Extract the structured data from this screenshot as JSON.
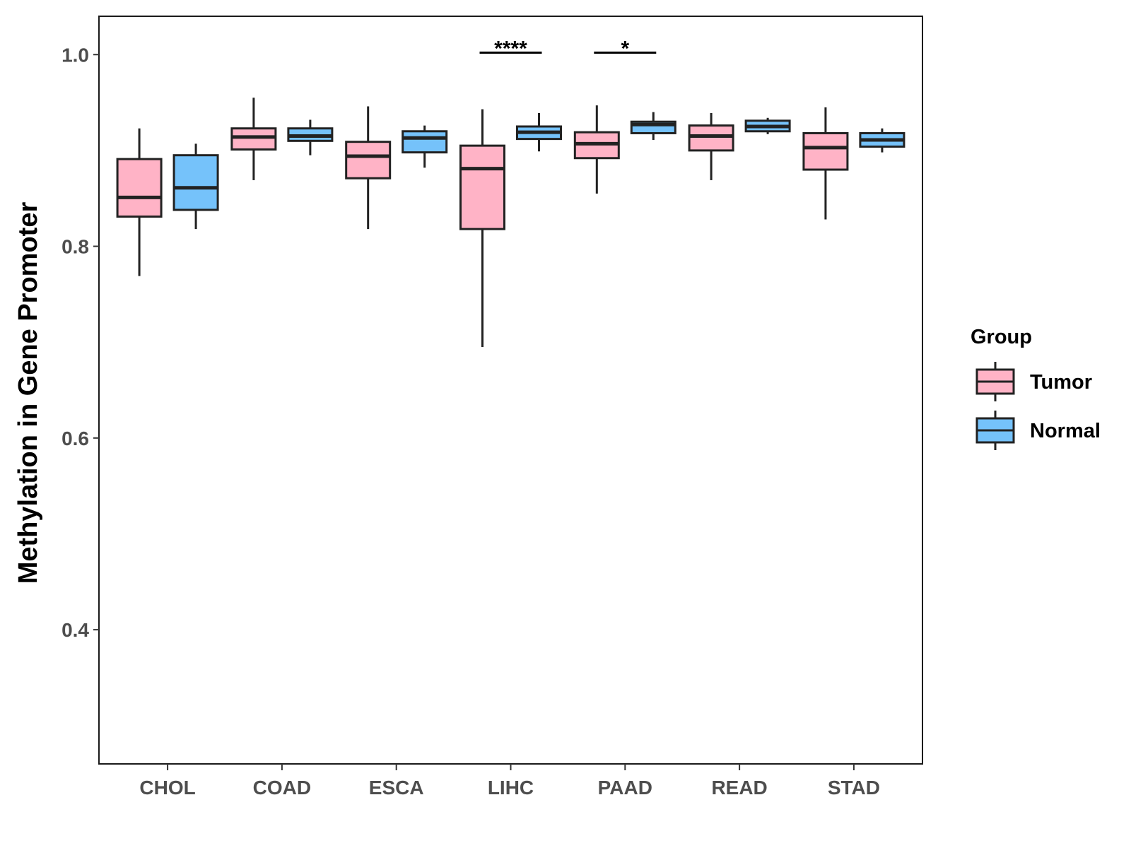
{
  "chart_data": {
    "type": "boxplot",
    "title": "",
    "xlabel": "",
    "ylabel": "Methylation in Gene Promoter",
    "ylim": [
      0.26,
      1.04
    ],
    "yticks": [
      0.4,
      0.6,
      0.8,
      1.0
    ],
    "ytick_labels": [
      "0.4",
      "0.6",
      "0.8",
      "1.0"
    ],
    "categories": [
      "CHOL",
      "COAD",
      "ESCA",
      "LIHC",
      "PAAD",
      "READ",
      "STAD"
    ],
    "grid": false,
    "legend": {
      "title": "Group",
      "position": "right",
      "entries": [
        {
          "name": "Tumor",
          "color": "#ffb3c6"
        },
        {
          "name": "Normal",
          "color": "#75c2fa"
        }
      ]
    },
    "series": [
      {
        "name": "Tumor",
        "color": "#ffb3c6",
        "boxes": [
          {
            "min": 0.769,
            "q1": 0.831,
            "median": 0.851,
            "q3": 0.891,
            "max": 0.923
          },
          {
            "min": 0.869,
            "q1": 0.901,
            "median": 0.914,
            "q3": 0.923,
            "max": 0.955
          },
          {
            "min": 0.818,
            "q1": 0.871,
            "median": 0.894,
            "q3": 0.909,
            "max": 0.946
          },
          {
            "min": 0.695,
            "q1": 0.818,
            "median": 0.881,
            "q3": 0.905,
            "max": 0.943
          },
          {
            "min": 0.855,
            "q1": 0.892,
            "median": 0.907,
            "q3": 0.919,
            "max": 0.947
          },
          {
            "min": 0.869,
            "q1": 0.9,
            "median": 0.915,
            "q3": 0.926,
            "max": 0.939
          },
          {
            "min": 0.828,
            "q1": 0.88,
            "median": 0.903,
            "q3": 0.918,
            "max": 0.945
          }
        ]
      },
      {
        "name": "Normal",
        "color": "#75c2fa",
        "boxes": [
          {
            "min": 0.818,
            "q1": 0.838,
            "median": 0.861,
            "q3": 0.895,
            "max": 0.907
          },
          {
            "min": 0.895,
            "q1": 0.91,
            "median": 0.915,
            "q3": 0.923,
            "max": 0.932
          },
          {
            "min": 0.882,
            "q1": 0.898,
            "median": 0.913,
            "q3": 0.92,
            "max": 0.926
          },
          {
            "min": 0.899,
            "q1": 0.912,
            "median": 0.919,
            "q3": 0.925,
            "max": 0.939
          },
          {
            "min": 0.911,
            "q1": 0.918,
            "median": 0.927,
            "q3": 0.93,
            "max": 0.94
          },
          {
            "min": 0.917,
            "q1": 0.92,
            "median": 0.925,
            "q3": 0.931,
            "max": 0.934
          },
          {
            "min": 0.898,
            "q1": 0.904,
            "median": 0.911,
            "q3": 0.918,
            "max": 0.923
          }
        ]
      }
    ],
    "annotations": [
      {
        "category": "LIHC",
        "label": "****",
        "y": 1.002
      },
      {
        "category": "PAAD",
        "label": "*",
        "y": 1.002
      }
    ]
  }
}
